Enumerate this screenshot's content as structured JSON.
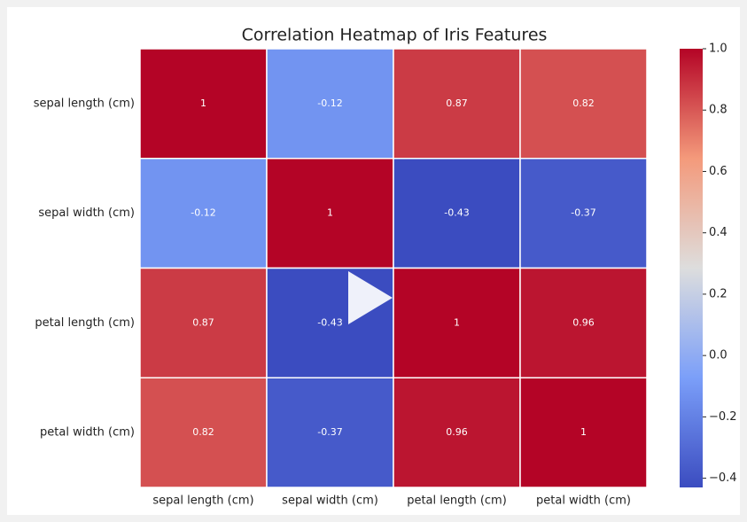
{
  "chart_data": {
    "type": "heatmap",
    "title": "Correlation Heatmap of Iris Features",
    "categories": [
      "sepal length (cm)",
      "sepal width (cm)",
      "petal length (cm)",
      "petal width (cm)"
    ],
    "values": [
      [
        1,
        -0.12,
        0.87,
        0.82
      ],
      [
        -0.12,
        1,
        -0.43,
        -0.37
      ],
      [
        0.87,
        -0.43,
        1,
        0.96
      ],
      [
        0.82,
        -0.37,
        0.96,
        1
      ]
    ],
    "colormap": "coolwarm",
    "zlim": [
      -0.43,
      1
    ],
    "zticks": [
      {
        "value": 1,
        "label": "1.0"
      },
      0.8,
      0.6,
      0.4,
      0.2,
      {
        "value": 0,
        "label": "0.0"
      },
      {
        "value": -0.2,
        "label": "−0.2"
      },
      {
        "value": -0.4,
        "label": "−0.4"
      }
    ]
  }
}
